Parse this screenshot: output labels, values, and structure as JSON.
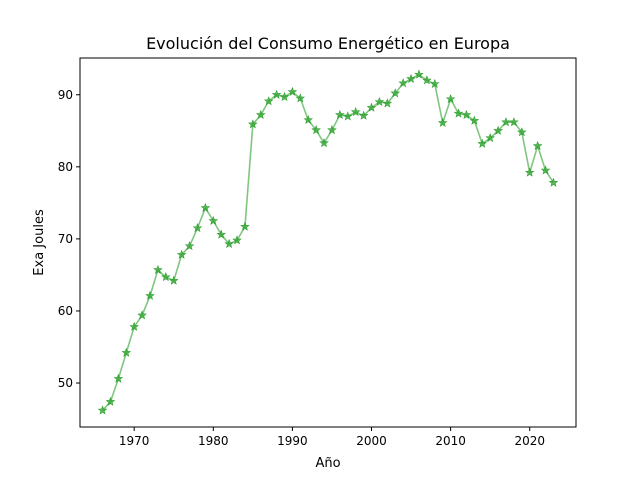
{
  "chart_data": {
    "type": "line",
    "title": "Evolución del Consumo Energético en Europa",
    "xlabel": "Año",
    "ylabel": "Exa Joules",
    "xlim": [
      1963.15,
      2025.85
    ],
    "ylim": [
      43.9,
      95.1
    ],
    "xticks": [
      1970,
      1980,
      1990,
      2000,
      2010,
      2020
    ],
    "yticks": [
      50,
      60,
      70,
      80,
      90
    ],
    "grid": false,
    "legend": null,
    "series": [
      {
        "color": "#2ca02c",
        "line_opacity": 0.6,
        "marker": "star",
        "x": [
          1966,
          1967,
          1968,
          1969,
          1970,
          1971,
          1972,
          1973,
          1974,
          1975,
          1976,
          1977,
          1978,
          1979,
          1980,
          1981,
          1982,
          1983,
          1984,
          1985,
          1986,
          1987,
          1988,
          1989,
          1990,
          1991,
          1992,
          1993,
          1994,
          1995,
          1996,
          1997,
          1998,
          1999,
          2000,
          2001,
          2002,
          2003,
          2004,
          2005,
          2006,
          2007,
          2008,
          2009,
          2010,
          2011,
          2012,
          2013,
          2014,
          2015,
          2016,
          2017,
          2018,
          2019,
          2020,
          2021,
          2022,
          2023
        ],
        "y": [
          46.2,
          47.4,
          50.6,
          54.2,
          57.8,
          59.4,
          62.1,
          65.7,
          64.7,
          64.2,
          67.8,
          69.0,
          71.5,
          74.3,
          72.5,
          70.6,
          69.3,
          69.8,
          71.7,
          85.9,
          87.2,
          89.1,
          90.0,
          89.7,
          90.4,
          89.5,
          86.5,
          85.1,
          83.3,
          85.1,
          87.2,
          87.0,
          87.6,
          87.1,
          88.2,
          89.0,
          88.8,
          90.2,
          91.6,
          92.2,
          92.8,
          92.0,
          91.5,
          86.1,
          89.4,
          87.4,
          87.2,
          86.4,
          83.2,
          84.0,
          85.0,
          86.2,
          86.2,
          84.8,
          79.2,
          82.9,
          79.5,
          77.8
        ]
      }
    ]
  }
}
